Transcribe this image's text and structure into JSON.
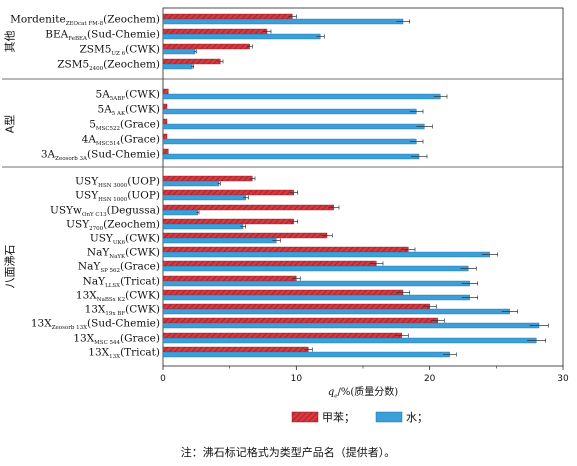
{
  "chart_data": {
    "type": "bar",
    "orientation": "horizontal",
    "xlabel_main": "q",
    "xlabel_sub": "e",
    "xlabel_rest": "/%(质量分数)",
    "xlim": [
      0,
      30
    ],
    "xticks": [
      0,
      10,
      20,
      30
    ],
    "series": [
      {
        "name": "甲苯",
        "color": "#d9363e",
        "pattern": "hatch"
      },
      {
        "name": "水",
        "color": "#3b9fd9",
        "pattern": "solid"
      }
    ],
    "legend": {
      "items": [
        "甲苯；",
        "水；"
      ],
      "placement": "bottom"
    },
    "groups": [
      {
        "name": "其他",
        "from": 0,
        "to": 3
      },
      {
        "name": "A型",
        "from": 4,
        "to": 8
      },
      {
        "name": "八面沸石",
        "from": 9,
        "to": 21
      }
    ],
    "categories": [
      {
        "base": "Mordenite",
        "sub": "ZEOcat FM-8",
        "suffix": "(Zeochem)",
        "toluene": 9.7,
        "toluene_err": 0.3,
        "water": 18.0,
        "water_err": 0.5
      },
      {
        "base": "BEA",
        "sub": "FeBEA",
        "suffix": "(Sud-Chemie)",
        "toluene": 7.8,
        "toluene_err": 0.3,
        "water": 11.8,
        "water_err": 0.3
      },
      {
        "base": "ZSM5",
        "sub": "UZ 6",
        "suffix": "(CWK)",
        "toluene": 6.5,
        "toluene_err": 0.2,
        "water": 2.4,
        "water_err": 0.1
      },
      {
        "base": "ZSM5",
        "sub": "2400",
        "suffix": "(Zeochem)",
        "toluene": 4.3,
        "toluene_err": 0.2,
        "water": 2.2,
        "water_err": 0.1
      },
      {
        "base": "5A",
        "sub": "5ABF",
        "suffix": "(CWK)",
        "toluene": 0.4,
        "toluene_err": 0.0,
        "water": 20.8,
        "water_err": 0.5
      },
      {
        "base": "5A",
        "sub": "5 AK",
        "suffix": "(CWK)",
        "toluene": 0.3,
        "toluene_err": 0.0,
        "water": 19.0,
        "water_err": 0.5
      },
      {
        "base": "5",
        "sub": "MSC522",
        "suffix": "(Grace)",
        "toluene": 0.3,
        "toluene_err": 0.0,
        "water": 19.6,
        "water_err": 0.6
      },
      {
        "base": "4A",
        "sub": "MSC514",
        "suffix": "(Grace)",
        "toluene": 0.3,
        "toluene_err": 0.0,
        "water": 19.0,
        "water_err": 0.5
      },
      {
        "base": "3A",
        "sub": "Zeosorb 3A",
        "suffix": "(Sud-Chemie)",
        "toluene": 0.4,
        "toluene_err": 0.0,
        "water": 19.2,
        "water_err": 0.6
      },
      {
        "base": "USY",
        "sub": "HSN 3000",
        "suffix": "(UOP)",
        "toluene": 6.7,
        "toluene_err": 0.2,
        "water": 4.2,
        "water_err": 0.1
      },
      {
        "base": "USY",
        "sub": "HSN 1000",
        "suffix": "(UOP)",
        "toluene": 9.8,
        "toluene_err": 0.3,
        "water": 6.2,
        "water_err": 0.2
      },
      {
        "base": "USYw",
        "sub": "OnY C13",
        "suffix": "(Degussa)",
        "toluene": 12.8,
        "toluene_err": 0.4,
        "water": 2.6,
        "water_err": 0.1
      },
      {
        "base": "USY",
        "sub": "2700",
        "suffix": "(Zeochem)",
        "toluene": 9.8,
        "toluene_err": 0.3,
        "water": 6.0,
        "water_err": 0.2
      },
      {
        "base": "USY",
        "sub": "UK6",
        "suffix": "(CWK)",
        "toluene": 12.3,
        "toluene_err": 0.4,
        "water": 8.5,
        "water_err": 0.3
      },
      {
        "base": "NaY",
        "sub": "NaYK",
        "suffix": "(CWK)",
        "toluene": 18.4,
        "toluene_err": 0.5,
        "water": 24.5,
        "water_err": 0.6
      },
      {
        "base": "NaY",
        "sub": "SP 562",
        "suffix": "(Grace)",
        "toluene": 16.0,
        "toluene_err": 0.5,
        "water": 22.9,
        "water_err": 0.6
      },
      {
        "base": "NaY",
        "sub": "LLSX",
        "suffix": "(Tricat)",
        "toluene": 10.0,
        "toluene_err": 0.3,
        "water": 23.0,
        "water_err": 0.6
      },
      {
        "base": "13X",
        "sub": "NaBSx K2",
        "suffix": "(CWK)",
        "toluene": 18.0,
        "toluene_err": 0.5,
        "water": 23.0,
        "water_err": 0.6
      },
      {
        "base": "13X",
        "sub": "19x BF",
        "suffix": "(CWK)",
        "toluene": 20.0,
        "toluene_err": 0.5,
        "water": 26.0,
        "water_err": 0.6
      },
      {
        "base": "13X",
        "sub": "Zeosorb 13X",
        "suffix": "(Sud-Chemie)",
        "toluene": 20.6,
        "toluene_err": 0.5,
        "water": 28.2,
        "water_err": 0.7
      },
      {
        "base": "13X",
        "sub": "MSC 544",
        "suffix": "(Grace)",
        "toluene": 17.9,
        "toluene_err": 0.5,
        "water": 28.0,
        "water_err": 0.7
      },
      {
        "base": "13X",
        "sub": "13X",
        "suffix": "(Tricat)",
        "toluene": 10.9,
        "toluene_err": 0.3,
        "water": 21.5,
        "water_err": 0.5
      }
    ]
  },
  "note": "注：沸石标记格式为类型产品名（提供者）。"
}
